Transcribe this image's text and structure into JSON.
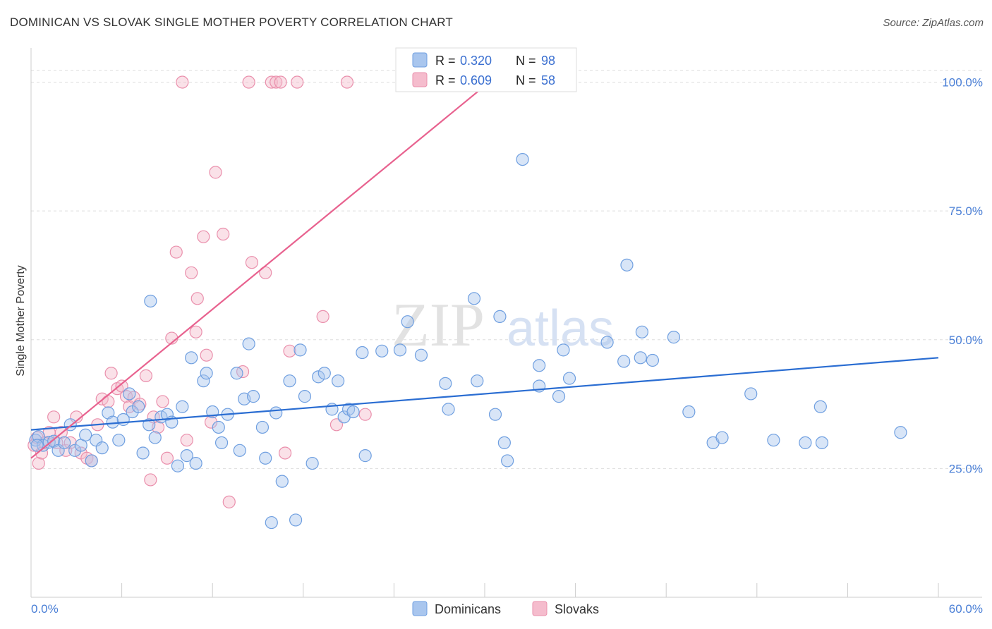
{
  "title": "DOMINICAN VS SLOVAK SINGLE MOTHER POVERTY CORRELATION CHART",
  "source": "Source: ZipAtlas.com",
  "watermark": {
    "zip": "ZIP",
    "atlas": "atlas"
  },
  "colors": {
    "dominican_fill": "#a9c6ee",
    "dominican_stroke": "#6f9fe0",
    "dominican_line": "#2a6dd2",
    "slovak_fill": "#f5bccd",
    "slovak_stroke": "#ea8fac",
    "slovak_line": "#e8628f",
    "axis_label": "#4a7fd6",
    "grid": "#dddddd"
  },
  "legend": {
    "rows": [
      {
        "r_label": "R =",
        "r_value": "0.320",
        "n_label": "N =",
        "n_value": "98",
        "series": "dominican"
      },
      {
        "r_label": "R =",
        "r_value": "0.609",
        "n_label": "N =",
        "n_value": "58",
        "series": "slovak"
      }
    ]
  },
  "chart_data": {
    "type": "scatter",
    "title": "DOMINICAN VS SLOVAK SINGLE MOTHER POVERTY CORRELATION CHART",
    "xlabel": "",
    "ylabel": "Single Mother Poverty",
    "xlim": [
      0,
      60
    ],
    "ylim": [
      0,
      105
    ],
    "x_tick_labels": [
      {
        "value": 0,
        "label": "0.0%"
      },
      {
        "value": 60,
        "label": "60.0%"
      }
    ],
    "y_tick_labels": [
      {
        "value": 25,
        "label": "25.0%"
      },
      {
        "value": 50,
        "label": "50.0%"
      },
      {
        "value": 75,
        "label": "75.0%"
      },
      {
        "value": 100,
        "label": "100.0%"
      }
    ],
    "grid": true,
    "legend_position": "top-center",
    "series": [
      {
        "name": "Dominicans",
        "key": "dominican",
        "r": 0.32,
        "n": 98,
        "trendline": {
          "x": [
            0,
            60
          ],
          "y": [
            32.5,
            46.5
          ]
        },
        "points": [
          [
            0.3,
            30.5
          ],
          [
            0.5,
            31.2
          ],
          [
            0.8,
            29.5
          ],
          [
            1.2,
            30.1
          ],
          [
            1.5,
            30.3
          ],
          [
            1.8,
            28.5
          ],
          [
            2.2,
            30.0
          ],
          [
            2.6,
            33.5
          ],
          [
            2.9,
            28.5
          ],
          [
            3.3,
            29.5
          ],
          [
            3.6,
            31.5
          ],
          [
            4.0,
            26.5
          ],
          [
            4.3,
            30.5
          ],
          [
            4.7,
            29.0
          ],
          [
            5.1,
            35.8
          ],
          [
            5.4,
            34.0
          ],
          [
            5.8,
            30.5
          ],
          [
            6.1,
            34.5
          ],
          [
            6.5,
            39.5
          ],
          [
            6.7,
            36.0
          ],
          [
            7.1,
            37.0
          ],
          [
            7.4,
            28.0
          ],
          [
            7.8,
            33.5
          ],
          [
            7.9,
            57.5
          ],
          [
            8.2,
            31.0
          ],
          [
            8.6,
            35.0
          ],
          [
            9.0,
            35.5
          ],
          [
            9.3,
            34.0
          ],
          [
            9.7,
            25.5
          ],
          [
            10.0,
            37.0
          ],
          [
            10.3,
            27.5
          ],
          [
            10.9,
            26.0
          ],
          [
            10.6,
            46.5
          ],
          [
            11.4,
            42.0
          ],
          [
            11.6,
            43.5
          ],
          [
            12.0,
            36.0
          ],
          [
            12.4,
            33.0
          ],
          [
            12.6,
            30.0
          ],
          [
            13.0,
            35.5
          ],
          [
            13.6,
            43.5
          ],
          [
            13.8,
            28.5
          ],
          [
            14.1,
            38.5
          ],
          [
            14.4,
            49.2
          ],
          [
            14.7,
            39.0
          ],
          [
            15.3,
            33.0
          ],
          [
            15.5,
            27.0
          ],
          [
            15.9,
            14.5
          ],
          [
            16.2,
            35.8
          ],
          [
            16.6,
            22.5
          ],
          [
            17.1,
            42.0
          ],
          [
            17.5,
            15.0
          ],
          [
            17.8,
            48.0
          ],
          [
            18.1,
            39.0
          ],
          [
            18.6,
            26.0
          ],
          [
            19.0,
            42.8
          ],
          [
            19.4,
            43.5
          ],
          [
            19.9,
            36.5
          ],
          [
            20.3,
            42.0
          ],
          [
            20.7,
            35.0
          ],
          [
            21.0,
            36.5
          ],
          [
            21.3,
            36.0
          ],
          [
            21.9,
            47.5
          ],
          [
            22.1,
            27.5
          ],
          [
            23.2,
            47.8
          ],
          [
            24.4,
            48.0
          ],
          [
            24.9,
            53.5
          ],
          [
            25.8,
            47.0
          ],
          [
            27.4,
            41.5
          ],
          [
            27.6,
            36.5
          ],
          [
            29.3,
            58.0
          ],
          [
            29.5,
            42.0
          ],
          [
            30.7,
            35.5
          ],
          [
            31.0,
            54.5
          ],
          [
            31.3,
            30.0
          ],
          [
            31.5,
            26.5
          ],
          [
            32.5,
            85.0
          ],
          [
            33.6,
            41.0
          ],
          [
            33.6,
            45.0
          ],
          [
            34.9,
            39.0
          ],
          [
            35.2,
            48.0
          ],
          [
            35.6,
            42.5
          ],
          [
            38.1,
            49.5
          ],
          [
            39.2,
            45.8
          ],
          [
            39.4,
            64.5
          ],
          [
            40.3,
            46.5
          ],
          [
            40.4,
            51.5
          ],
          [
            41.1,
            46.0
          ],
          [
            42.5,
            50.5
          ],
          [
            43.5,
            36.0
          ],
          [
            45.1,
            30.0
          ],
          [
            45.7,
            31.0
          ],
          [
            47.6,
            39.5
          ],
          [
            49.1,
            30.5
          ],
          [
            51.2,
            30.0
          ],
          [
            52.2,
            37.0
          ],
          [
            52.3,
            30.0
          ],
          [
            57.5,
            32.0
          ],
          [
            0.4,
            29.5
          ]
        ]
      },
      {
        "name": "Slovaks",
        "key": "slovak",
        "r": 0.609,
        "n": 58,
        "trendline": {
          "x": [
            0,
            30.3
          ],
          "y": [
            27.0,
            100.0
          ]
        },
        "points": [
          [
            0.2,
            29.5
          ],
          [
            0.4,
            31.0
          ],
          [
            0.5,
            26.0
          ],
          [
            0.7,
            28.0
          ],
          [
            0.9,
            30.0
          ],
          [
            1.2,
            32.0
          ],
          [
            1.5,
            35.0
          ],
          [
            1.7,
            30.0
          ],
          [
            2.0,
            32.0
          ],
          [
            2.3,
            28.5
          ],
          [
            2.6,
            30.0
          ],
          [
            3.0,
            35.0
          ],
          [
            3.3,
            28.0
          ],
          [
            3.7,
            27.0
          ],
          [
            4.0,
            26.5
          ],
          [
            4.4,
            33.5
          ],
          [
            4.7,
            38.5
          ],
          [
            5.1,
            38.0
          ],
          [
            5.3,
            43.5
          ],
          [
            5.7,
            40.5
          ],
          [
            6.0,
            41.0
          ],
          [
            6.3,
            39.0
          ],
          [
            6.5,
            37.0
          ],
          [
            6.8,
            38.8
          ],
          [
            7.2,
            37.5
          ],
          [
            7.6,
            43.0
          ],
          [
            7.9,
            22.8
          ],
          [
            8.1,
            35.0
          ],
          [
            8.4,
            33.0
          ],
          [
            8.7,
            38.0
          ],
          [
            9.0,
            27.0
          ],
          [
            9.3,
            50.3
          ],
          [
            9.6,
            67.0
          ],
          [
            10.0,
            100.0
          ],
          [
            10.3,
            30.5
          ],
          [
            10.6,
            63.0
          ],
          [
            10.9,
            51.5
          ],
          [
            11.0,
            58.0
          ],
          [
            11.4,
            70.0
          ],
          [
            11.6,
            47.0
          ],
          [
            11.9,
            34.0
          ],
          [
            12.2,
            82.5
          ],
          [
            12.7,
            70.5
          ],
          [
            13.1,
            18.5
          ],
          [
            14.0,
            43.8
          ],
          [
            14.4,
            100.0
          ],
          [
            14.6,
            65.0
          ],
          [
            15.5,
            63.0
          ],
          [
            15.9,
            100.0
          ],
          [
            16.2,
            100.0
          ],
          [
            16.5,
            100.0
          ],
          [
            16.8,
            28.0
          ],
          [
            17.1,
            47.8
          ],
          [
            17.6,
            100.0
          ],
          [
            19.3,
            54.5
          ],
          [
            20.2,
            33.5
          ],
          [
            20.9,
            100.0
          ],
          [
            22.1,
            35.5
          ]
        ]
      }
    ]
  },
  "bottom_legend": [
    {
      "label": "Dominicans",
      "series": "dominican"
    },
    {
      "label": "Slovaks",
      "series": "slovak"
    }
  ]
}
